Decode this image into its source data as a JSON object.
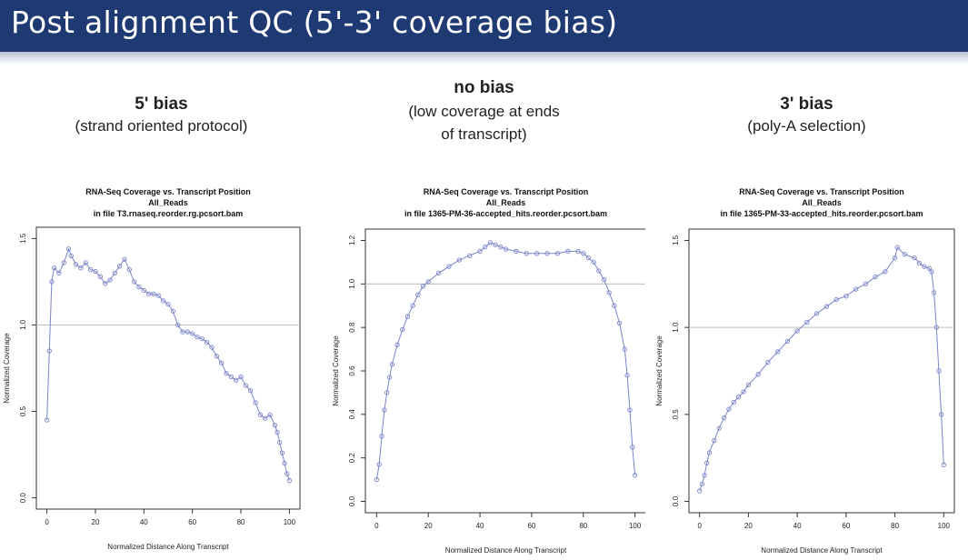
{
  "slide": {
    "title": "Post alignment QC (5'-3' coverage bias)"
  },
  "captions": [
    {
      "heading": "5' bias",
      "lines": [
        "(strand oriented protocol)"
      ]
    },
    {
      "heading": "no bias",
      "lines": [
        "(low coverage at ends",
        "of  transcript)"
      ]
    },
    {
      "heading": "3' bias",
      "lines": [
        "(poly-A selection)"
      ]
    }
  ],
  "colors": {
    "header": "#1f3a72",
    "series": "#7b86c9",
    "refline": "#bdbdbd"
  },
  "chart_data": [
    {
      "type": "line",
      "title": "RNA-Seq Coverage vs. Transcript Position",
      "subtitle": "All_Reads",
      "file": "in file T3.rnaseq.reorder.rg.pcsort.bam",
      "xlabel": "Normalized Distance Along Transcript",
      "ylabel": "Normalized Coverage",
      "xlim": [
        0,
        100
      ],
      "ylim": [
        0,
        1.5
      ],
      "xticks": [
        "0",
        "20",
        "40",
        "60",
        "80",
        "100"
      ],
      "xtick_values": [
        0,
        20,
        40,
        60,
        80,
        100
      ],
      "yticks": [
        "0.0",
        "0.5",
        "1.0",
        "1.5"
      ],
      "ytick_values": [
        0,
        0.5,
        1.0,
        1.5
      ],
      "reference_line": 1.0,
      "x": [
        0,
        1,
        2,
        3,
        5,
        7,
        9,
        10,
        12,
        14,
        16,
        18,
        20,
        22,
        24,
        26,
        28,
        30,
        32,
        34,
        36,
        38,
        40,
        42,
        44,
        46,
        48,
        50,
        52,
        54,
        56,
        58,
        60,
        62,
        64,
        66,
        68,
        70,
        72,
        74,
        76,
        78,
        80,
        82,
        84,
        86,
        88,
        90,
        92,
        94,
        95,
        96,
        97,
        98,
        99,
        100
      ],
      "y": [
        0.45,
        0.85,
        1.25,
        1.33,
        1.3,
        1.36,
        1.44,
        1.4,
        1.35,
        1.33,
        1.36,
        1.32,
        1.31,
        1.28,
        1.24,
        1.26,
        1.3,
        1.34,
        1.38,
        1.32,
        1.25,
        1.22,
        1.2,
        1.18,
        1.18,
        1.17,
        1.14,
        1.12,
        1.08,
        1.0,
        0.96,
        0.96,
        0.95,
        0.93,
        0.92,
        0.9,
        0.87,
        0.82,
        0.78,
        0.72,
        0.7,
        0.68,
        0.7,
        0.65,
        0.62,
        0.55,
        0.48,
        0.46,
        0.48,
        0.42,
        0.38,
        0.32,
        0.26,
        0.2,
        0.14,
        0.1
      ]
    },
    {
      "type": "line",
      "title": "RNA-Seq Coverage vs. Transcript Position",
      "subtitle": "All_Reads",
      "file": "in file 1365-PM-36-accepted_hits.reorder.pcsort.bam",
      "xlabel": "Normalized Distance Along Transcript",
      "ylabel": "Normalized Coverage",
      "xlim": [
        0,
        100
      ],
      "ylim": [
        0,
        1.2
      ],
      "xticks": [
        "0",
        "20",
        "40",
        "60",
        "80",
        "100"
      ],
      "xtick_values": [
        0,
        20,
        40,
        60,
        80,
        100
      ],
      "yticks": [
        "0.0",
        "0.2",
        "0.4",
        "0.6",
        "0.8",
        "1.0",
        "1.2"
      ],
      "ytick_values": [
        0,
        0.2,
        0.4,
        0.6,
        0.8,
        1.0,
        1.2
      ],
      "reference_line": 1.0,
      "x": [
        0,
        1,
        2,
        3,
        4,
        5,
        6,
        8,
        10,
        12,
        14,
        16,
        18,
        20,
        24,
        28,
        32,
        36,
        40,
        42,
        44,
        46,
        48,
        50,
        54,
        58,
        62,
        66,
        70,
        74,
        78,
        80,
        82,
        84,
        86,
        88,
        90,
        92,
        94,
        96,
        97,
        98,
        99,
        100
      ],
      "y": [
        0.1,
        0.17,
        0.3,
        0.42,
        0.5,
        0.57,
        0.63,
        0.72,
        0.79,
        0.85,
        0.9,
        0.95,
        0.99,
        1.01,
        1.05,
        1.08,
        1.11,
        1.13,
        1.15,
        1.17,
        1.19,
        1.18,
        1.17,
        1.16,
        1.15,
        1.14,
        1.14,
        1.14,
        1.14,
        1.15,
        1.15,
        1.14,
        1.12,
        1.1,
        1.06,
        1.02,
        0.96,
        0.9,
        0.82,
        0.7,
        0.58,
        0.42,
        0.25,
        0.12
      ]
    },
    {
      "type": "line",
      "title": "RNA-Seq Coverage vs. Transcript Position",
      "subtitle": "All_Reads",
      "file": "in file 1365-PM-33-accepted_hits.reorder.pcsort.bam",
      "xlabel": "Normalized Distance Along Transcript",
      "ylabel": "Normalized Coverage",
      "xlim": [
        0,
        100
      ],
      "ylim": [
        0,
        1.5
      ],
      "xticks": [
        "0",
        "20",
        "40",
        "60",
        "80",
        "100"
      ],
      "xtick_values": [
        0,
        20,
        40,
        60,
        80,
        100
      ],
      "yticks": [
        "0.0",
        "0.5",
        "1.0",
        "1.5"
      ],
      "ytick_values": [
        0,
        0.5,
        1.0,
        1.5
      ],
      "reference_line": 1.0,
      "x": [
        0,
        1,
        2,
        3,
        4,
        6,
        8,
        10,
        12,
        14,
        16,
        18,
        20,
        24,
        28,
        32,
        36,
        40,
        44,
        48,
        52,
        56,
        60,
        64,
        68,
        72,
        76,
        80,
        81,
        84,
        88,
        90,
        92,
        94,
        95,
        96,
        97,
        98,
        99,
        100
      ],
      "y": [
        0.06,
        0.1,
        0.15,
        0.22,
        0.28,
        0.35,
        0.42,
        0.48,
        0.53,
        0.57,
        0.6,
        0.63,
        0.67,
        0.73,
        0.8,
        0.86,
        0.92,
        0.98,
        1.03,
        1.08,
        1.12,
        1.16,
        1.18,
        1.22,
        1.25,
        1.29,
        1.32,
        1.4,
        1.46,
        1.42,
        1.4,
        1.37,
        1.35,
        1.34,
        1.32,
        1.2,
        1.0,
        0.75,
        0.5,
        0.21
      ]
    }
  ]
}
